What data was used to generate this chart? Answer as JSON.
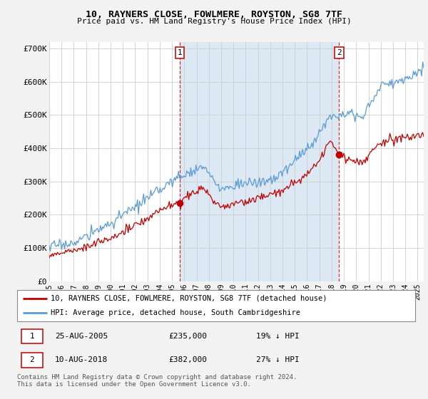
{
  "title": "10, RAYNERS CLOSE, FOWLMERE, ROYSTON, SG8 7TF",
  "subtitle": "Price paid vs. HM Land Registry's House Price Index (HPI)",
  "ylim": [
    0,
    720000
  ],
  "yticks": [
    0,
    100000,
    200000,
    300000,
    400000,
    500000,
    600000,
    700000
  ],
  "ytick_labels": [
    "£0",
    "£100K",
    "£200K",
    "£300K",
    "£400K",
    "£500K",
    "£600K",
    "£700K"
  ],
  "xlim_start": 1995.0,
  "xlim_end": 2025.5,
  "hpi_color": "#5b9bd5",
  "price_color": "#c00000",
  "vline_color": "#c00000",
  "shade_color": "#dce9f5",
  "sale1_x": 2005.65,
  "sale1_y": 235000,
  "sale2_x": 2018.61,
  "sale2_y": 382000,
  "legend_label_price": "10, RAYNERS CLOSE, FOWLMERE, ROYSTON, SG8 7TF (detached house)",
  "legend_label_hpi": "HPI: Average price, detached house, South Cambridgeshire",
  "footer": "Contains HM Land Registry data © Crown copyright and database right 2024.\nThis data is licensed under the Open Government Licence v3.0.",
  "fig_bg": "#f0f0f0",
  "plot_bg": "#ffffff"
}
